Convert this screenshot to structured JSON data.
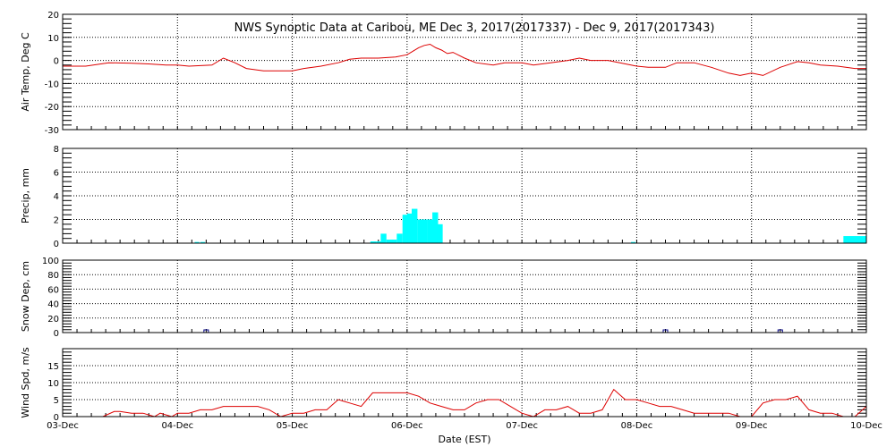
{
  "title": "NWS Synoptic Data at Caribou, ME   Dec  3, 2017(2017337) - Dec  9, 2017(2017343)",
  "xlabel": "Date (EST)",
  "x_ticks": [
    "03-Dec",
    "04-Dec",
    "05-Dec",
    "06-Dec",
    "07-Dec",
    "08-Dec",
    "09-Dec",
    "10-Dec"
  ],
  "colors": {
    "line": "#dd0000",
    "precip": "#00ffff",
    "snow_marker": "#000080",
    "frame": "#000000",
    "grid": "#000000"
  },
  "chart_data": [
    {
      "type": "line",
      "ylabel": "Air Temp, Deg C",
      "ylim": [
        -30,
        20
      ],
      "yticks": [
        20,
        10,
        0,
        -10,
        -20,
        -30
      ],
      "grid": true,
      "series": [
        {
          "x": [
            0,
            0.2,
            0.4,
            0.6,
            0.75,
            0.9,
            1.0,
            1.1,
            1.3,
            1.4,
            1.5,
            1.6,
            1.75,
            1.9,
            2.0,
            2.1,
            2.25,
            2.4,
            2.5,
            2.6,
            2.75,
            2.9,
            3.0,
            3.05,
            3.1,
            3.15,
            3.2,
            3.25,
            3.3,
            3.35,
            3.4,
            3.5,
            3.6,
            3.75,
            3.85,
            4.0,
            4.1,
            4.25,
            4.4,
            4.5,
            4.6,
            4.75,
            5.0,
            5.1,
            5.25,
            5.35,
            5.5,
            5.65,
            5.8,
            5.9,
            6.0,
            6.1,
            6.25,
            6.4,
            6.5,
            6.6,
            6.75,
            6.9,
            7.0
          ],
          "y": [
            -2.5,
            -2.5,
            -1,
            -1.2,
            -1.5,
            -2,
            -2,
            -2.5,
            -2,
            1,
            -1,
            -3.5,
            -4.5,
            -4.5,
            -4.5,
            -3.5,
            -2.5,
            -1,
            0.5,
            1,
            1,
            1.5,
            2.5,
            4,
            5.5,
            6.5,
            7,
            5.5,
            4.5,
            3,
            3.5,
            1,
            -1,
            -2,
            -1,
            -1,
            -2,
            -1,
            0,
            1,
            0,
            0,
            -2.5,
            -3,
            -3,
            -1,
            -1,
            -3,
            -5.5,
            -6.5,
            -5.5,
            -6.5,
            -3,
            -0.5,
            -1,
            -2,
            -2.5,
            -3.5,
            -3.5
          ]
        }
      ]
    },
    {
      "type": "bar",
      "ylabel": "Precip, mm",
      "ylim": [
        0,
        8
      ],
      "yticks": [
        8,
        6,
        4,
        2,
        0
      ],
      "grid": true,
      "series": [
        {
          "x": [
            1.15,
            1.2,
            2.68,
            2.73,
            2.77,
            2.82,
            2.86,
            2.91,
            2.96,
            3.0,
            3.04,
            3.09,
            3.13,
            3.18,
            3.22,
            3.26,
            4.95,
            7.0
          ],
          "dx": [
            0.04,
            0.04,
            0.05,
            0.05,
            0.05,
            0.05,
            0.05,
            0.05,
            0.05,
            0.05,
            0.05,
            0.05,
            0.05,
            0.05,
            0.05,
            0.05,
            0.04,
            -0.2
          ],
          "values": [
            0.1,
            0.1,
            0.15,
            0.15,
            0.8,
            0.3,
            0.3,
            0.8,
            2.4,
            2.5,
            2.9,
            2.0,
            2.0,
            2.0,
            2.6,
            1.6,
            0.1,
            0.6
          ]
        }
      ]
    },
    {
      "type": "scatter",
      "ylabel": "Snow Dep, cm",
      "ylim": [
        0,
        100
      ],
      "yticks": [
        100,
        80,
        60,
        40,
        20,
        0
      ],
      "grid": true,
      "series": [
        {
          "x": [
            1.25,
            5.25,
            6.25
          ],
          "y": [
            0,
            0,
            0
          ]
        }
      ]
    },
    {
      "type": "line",
      "ylabel": "Wind Spd, m/s",
      "ylim": [
        0,
        20
      ],
      "yticks": [
        15,
        10,
        5,
        0
      ],
      "grid": true,
      "series": [
        {
          "x": [
            0.1,
            0.2,
            0.3,
            0.35,
            0.45,
            0.5,
            0.6,
            0.7,
            0.8,
            0.85,
            0.95,
            1.0,
            1.1,
            1.2,
            1.3,
            1.4,
            1.5,
            1.6,
            1.7,
            1.8,
            1.9,
            2.0,
            2.1,
            2.2,
            2.3,
            2.4,
            2.5,
            2.6,
            2.7,
            2.8,
            2.9,
            3.0,
            3.1,
            3.2,
            3.3,
            3.4,
            3.5,
            3.6,
            3.7,
            3.8,
            3.9,
            4.0,
            4.1,
            4.2,
            4.3,
            4.4,
            4.5,
            4.6,
            4.7,
            4.8,
            4.9,
            5.0,
            5.1,
            5.2,
            5.3,
            5.4,
            5.5,
            5.6,
            5.7,
            5.8,
            5.9,
            6.0,
            6.1,
            6.2,
            6.3,
            6.4,
            6.5,
            6.6,
            6.7,
            6.8,
            6.9,
            7.0
          ],
          "y": [
            0,
            0,
            0,
            0,
            1.5,
            1.5,
            1,
            1,
            0,
            1,
            0,
            1,
            1,
            2,
            2,
            3,
            3,
            3,
            3,
            2,
            0,
            1,
            1,
            2,
            2,
            5,
            4,
            3,
            7,
            7,
            7,
            7,
            6,
            4,
            3,
            2,
            2,
            4,
            5,
            5,
            3,
            1,
            0,
            2,
            2,
            3,
            1,
            1,
            2,
            8,
            5,
            5,
            4,
            3,
            3,
            2,
            1,
            1,
            1,
            1,
            0,
            0,
            4,
            5,
            5,
            6,
            2,
            1,
            1,
            0,
            0,
            3
          ]
        }
      ]
    }
  ]
}
